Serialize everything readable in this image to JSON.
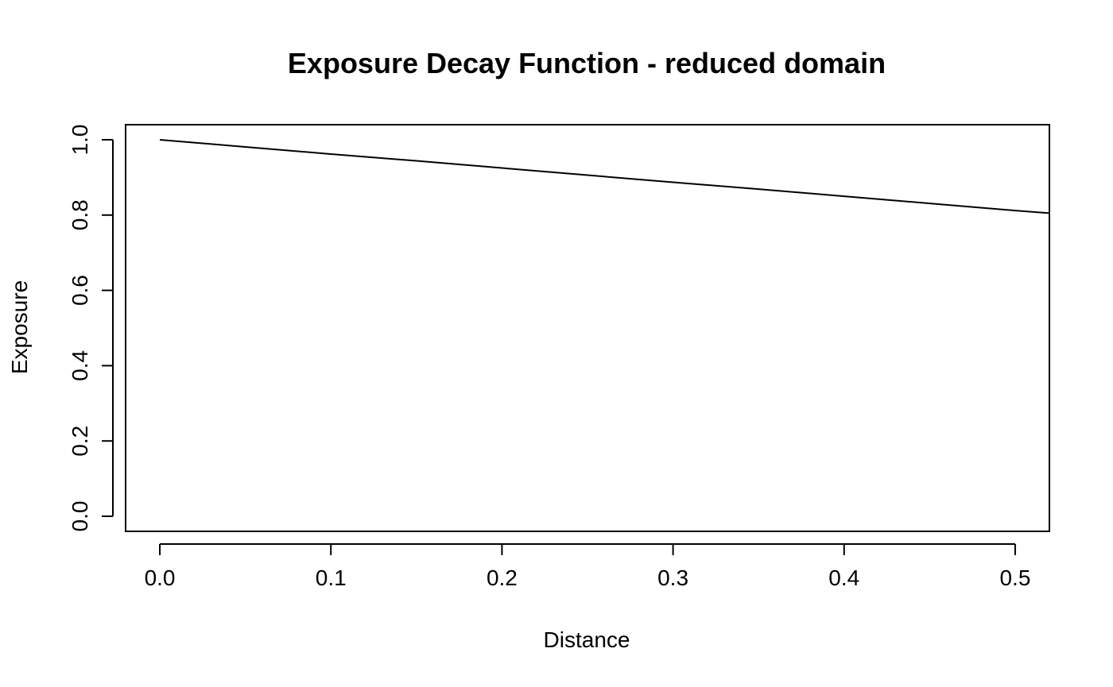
{
  "chart_data": {
    "type": "line",
    "title": "Exposure Decay Function - reduced domain",
    "xlabel": "Distance",
    "ylabel": "Exposure",
    "xlim": [
      -0.02,
      0.52
    ],
    "ylim": [
      -0.04,
      1.04
    ],
    "x_ticks": [
      0.0,
      0.1,
      0.2,
      0.3,
      0.4,
      0.5
    ],
    "x_tick_labels": [
      "0.0",
      "0.1",
      "0.2",
      "0.3",
      "0.4",
      "0.5"
    ],
    "y_ticks": [
      0.0,
      0.2,
      0.4,
      0.6,
      0.8,
      1.0
    ],
    "y_tick_labels": [
      "0.0",
      "0.2",
      "0.4",
      "0.6",
      "0.8",
      "1.0"
    ],
    "grid": false,
    "series": [
      {
        "color": "#000000",
        "x": [
          0.0,
          0.05,
          0.1,
          0.15,
          0.2,
          0.25,
          0.3,
          0.35,
          0.4,
          0.45,
          0.5,
          0.52
        ],
        "y": [
          1.0,
          0.981,
          0.962,
          0.944,
          0.925,
          0.906,
          0.887,
          0.869,
          0.85,
          0.831,
          0.812,
          0.805
        ]
      }
    ]
  }
}
